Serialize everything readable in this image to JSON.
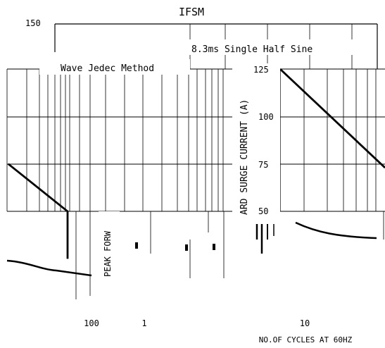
{
  "chart_data": {
    "type": "line",
    "title": "IFSM",
    "annotation_line1": "8.3ms Single Half Sine",
    "annotation_line2": "Wave Jedec Method",
    "ylabel_left": "PEAK FORW",
    "ylabel_right": "ARD SURGE CURRENT (A)",
    "xlabel": "NO.OF CYCLES AT 60HZ",
    "y_ticks": [
      "150",
      "125",
      "100",
      "75",
      "50"
    ],
    "x_ticks": [
      "100",
      "1",
      "10"
    ],
    "series": [
      {
        "values": [
          [
            1,
            125
          ],
          [
            10,
            73
          ]
        ]
      },
      {
        "values": [
          [
            0.5,
            75
          ],
          [
            1,
            50
          ],
          [
            1,
            25
          ]
        ]
      }
    ]
  }
}
